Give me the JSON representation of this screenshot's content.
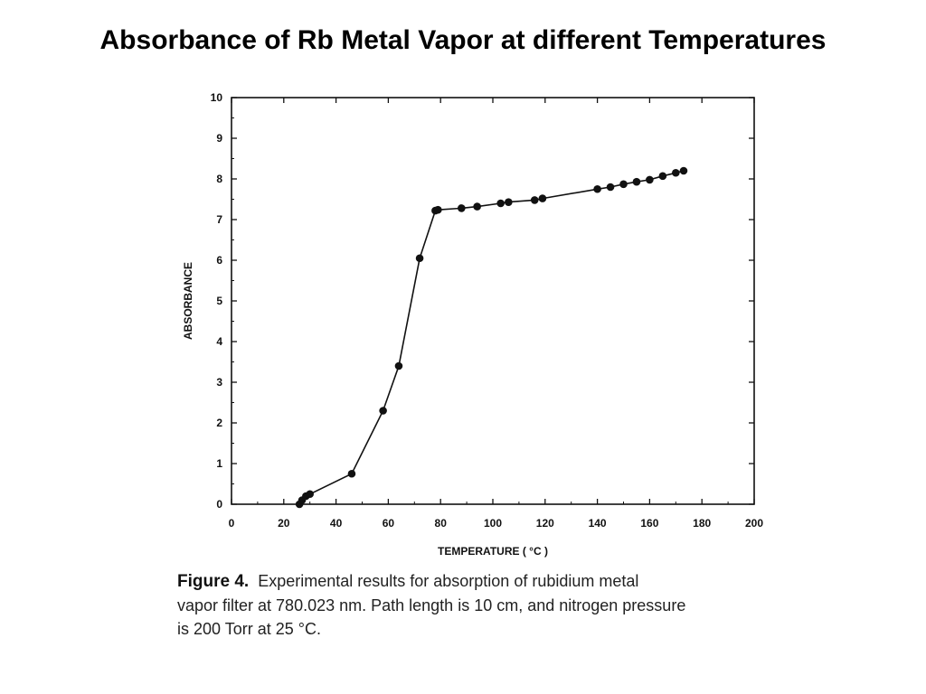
{
  "slide": {
    "title": "Absorbance of Rb Metal Vapor at different Temperatures"
  },
  "caption": {
    "figure_label": "Figure 4.",
    "lines": [
      "Experimental results for absorption of rubidium metal",
      "vapor filter at 780.023 nm. Path length is 10 cm, and nitrogen pressure",
      "is 200 Torr at 25 °C."
    ]
  },
  "chart_data": {
    "type": "line",
    "title": "",
    "xlabel": "TEMPERATURE ( °C )",
    "ylabel": "ABSORBANCE",
    "xlim": [
      0,
      200
    ],
    "ylim": [
      0,
      10
    ],
    "x_ticks": [
      0,
      20,
      40,
      60,
      80,
      100,
      120,
      140,
      160,
      180,
      200
    ],
    "y_ticks": [
      0,
      1,
      2,
      3,
      4,
      5,
      6,
      7,
      8,
      9,
      10
    ],
    "grid": false,
    "colors": {
      "line": "#111111",
      "marker": "#111111"
    },
    "series": [
      {
        "markers": true,
        "x": [
          26,
          27,
          28.5,
          30,
          46,
          58,
          64,
          72,
          78,
          79,
          88,
          94,
          103,
          106,
          116,
          119,
          140,
          145,
          150,
          155,
          160,
          165,
          170,
          173
        ],
        "y": [
          0.0,
          0.1,
          0.2,
          0.25,
          0.75,
          2.3,
          3.4,
          6.05,
          7.22,
          7.24,
          7.28,
          7.32,
          7.4,
          7.43,
          7.48,
          7.52,
          7.75,
          7.8,
          7.87,
          7.93,
          7.98,
          8.07,
          8.15,
          8.2
        ]
      }
    ]
  }
}
